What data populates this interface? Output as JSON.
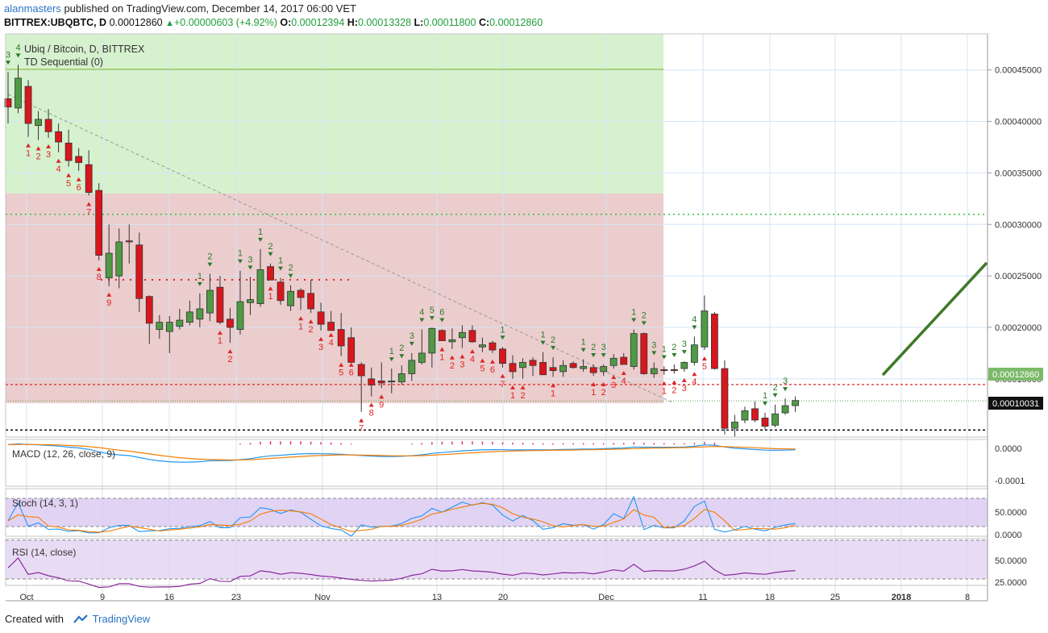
{
  "header": {
    "author": "alanmasters",
    "published_text": "published on TradingView.com, December 14, 2017 06:00 VET",
    "symbol_line": "BITTREX:UBQBTC, D",
    "last": "0.00012860",
    "change": "+0.00000603 (+4.92%)",
    "o_label": "O:",
    "o": "0.00012394",
    "h_label": "H:",
    "h": "0.00013328",
    "l_label": "L:",
    "l": "0.00011800",
    "c_label": "C:",
    "c": "0.00012860"
  },
  "legend": {
    "title": "Ubiq / Bitcoin, D, BITTREX",
    "indicator": "TD Sequential (0)"
  },
  "panes": {
    "macd": {
      "label": "MACD (12, 26, close, 9)",
      "ticks": [
        "0.0000",
        "-0.0001"
      ]
    },
    "stoch": {
      "label": "Stoch (14, 3, 1)",
      "ticks": [
        "50.0000",
        "0.0000"
      ]
    },
    "rsi": {
      "label": "RSI (14, close)",
      "ticks": [
        "50.0000",
        "25.0000"
      ]
    }
  },
  "price_axis": {
    "ticks": [
      "0.00045000",
      "0.00040000",
      "0.00035000",
      "0.00030000",
      "0.00025000",
      "0.00020000",
      "0.00015000"
    ],
    "last_price_tag": "0.00012860",
    "support_tag": "0.00010031"
  },
  "time_axis": [
    "Oct",
    "9",
    "16",
    "23",
    "Nov",
    "13",
    "20",
    "Dec",
    "11",
    "18",
    "25",
    "2018",
    "8"
  ],
  "footer": {
    "created_with": "Created with",
    "brand": "TradingView"
  },
  "colors": {
    "up": "#4f9a44",
    "down": "#d9161c",
    "green_zone": "#cfeec6",
    "red_zone": "#e8c4c4",
    "trend_arrow": "#3e7a28",
    "macd": "#2196f3",
    "signal": "#f57c00",
    "hist": "#e0357f"
  },
  "chart_data": {
    "type": "candlestick",
    "interval": "1D",
    "y_range": [
      9.35e-05,
      0.000485
    ],
    "candles_ohlc": [
      [
        0.000422,
        0.000448,
        0.000398,
        0.000414
      ],
      [
        0.000413,
        0.000455,
        0.000408,
        0.000442
      ],
      [
        0.000434,
        0.00044,
        0.000385,
        0.000398
      ],
      [
        0.000396,
        0.00041,
        0.000382,
        0.000402
      ],
      [
        0.000402,
        0.000412,
        0.000384,
        0.00039
      ],
      [
        0.00039,
        0.000398,
        0.00037,
        0.00038
      ],
      [
        0.000379,
        0.000392,
        0.000356,
        0.000362
      ],
      [
        0.000366,
        0.000374,
        0.000352,
        0.00036
      ],
      [
        0.000358,
        0.000372,
        0.000328,
        0.000331
      ],
      [
        0.000333,
        0.00034,
        0.000265,
        0.00027
      ],
      [
        0.000248,
        0.0003,
        0.00024,
        0.000272
      ],
      [
        0.00025,
        0.000296,
        0.000238,
        0.000283
      ],
      [
        0.000284,
        0.0003,
        0.000262,
        0.000283
      ],
      [
        0.00028,
        0.000292,
        0.000215,
        0.000228
      ],
      [
        0.00023,
        0.000231,
        0.000184,
        0.000204
      ],
      [
        0.000198,
        0.000212,
        0.000189,
        0.000205
      ],
      [
        0.000196,
        0.000211,
        0.000175,
        0.000205
      ],
      [
        0.000201,
        0.000218,
        0.000198,
        0.000207
      ],
      [
        0.000205,
        0.000226,
        0.000202,
        0.000215
      ],
      [
        0.000208,
        0.000233,
        0.0002,
        0.000218
      ],
      [
        0.000214,
        0.000252,
        0.000206,
        0.000236
      ],
      [
        0.000239,
        0.00025,
        0.000203,
        0.000205
      ],
      [
        0.000208,
        0.000219,
        0.000185,
        0.0002
      ],
      [
        0.000198,
        0.000255,
        0.000193,
        0.000225
      ],
      [
        0.000224,
        0.000249,
        0.000212,
        0.000227
      ],
      [
        0.000223,
        0.000276,
        0.00022,
        0.000256
      ],
      [
        0.000259,
        0.000262,
        0.000246,
        0.000246
      ],
      [
        0.000244,
        0.000248,
        0.000222,
        0.000226
      ],
      [
        0.000221,
        0.000241,
        0.000216,
        0.000235
      ],
      [
        0.000236,
        0.000238,
        0.000217,
        0.000229
      ],
      [
        0.000233,
        0.000246,
        0.000214,
        0.000218
      ],
      [
        0.000215,
        0.000224,
        0.000197,
        0.000203
      ],
      [
        0.000205,
        0.000216,
        0.000201,
        0.000197
      ],
      [
        0.000198,
        0.000214,
        0.000172,
        0.000182
      ],
      [
        0.00019,
        0.0002,
        0.000172,
        0.000166
      ],
      [
        0.000164,
        0.000166,
        0.000118,
        0.000153
      ],
      [
        0.00015,
        0.000161,
        0.000133,
        0.000144
      ],
      [
        0.000148,
        0.000166,
        0.000141,
        0.000146
      ],
      [
        0.000147,
        0.00016,
        0.000136,
        0.000148
      ],
      [
        0.000147,
        0.000163,
        0.000144,
        0.000155
      ],
      [
        0.000155,
        0.000175,
        0.000148,
        0.000168
      ],
      [
        0.000166,
        0.000198,
        0.000164,
        0.000175
      ],
      [
        0.000175,
        0.0002,
        0.000161,
        0.000199
      ],
      [
        0.000197,
        0.000198,
        0.000187,
        0.000187
      ],
      [
        0.000186,
        0.000199,
        0.000179,
        0.000188
      ],
      [
        0.00019,
        0.000202,
        0.00018,
        0.000195
      ],
      [
        0.000197,
        0.000202,
        0.000185,
        0.000186
      ],
      [
        0.000181,
        0.00019,
        0.000176,
        0.000183
      ],
      [
        0.000185,
        0.000187,
        0.000175,
        0.000178
      ],
      [
        0.000179,
        0.000181,
        0.000161,
        0.000165
      ],
      [
        0.000165,
        0.000173,
        0.00015,
        0.000157
      ],
      [
        0.000161,
        0.00017,
        0.00015,
        0.000166
      ],
      [
        0.000168,
        0.000171,
        0.000153,
        0.000163
      ],
      [
        0.000166,
        0.000176,
        0.000158,
        0.000154
      ],
      [
        0.000161,
        0.000171,
        0.000152,
        0.000158
      ],
      [
        0.000157,
        0.000168,
        0.000152,
        0.000163
      ],
      [
        0.000165,
        0.000167,
        0.00016,
        0.000161
      ],
      [
        0.00016,
        0.000169,
        0.000157,
        0.000162
      ],
      [
        0.000161,
        0.000164,
        0.000153,
        0.000156
      ],
      [
        0.000157,
        0.000164,
        0.000153,
        0.000162
      ],
      [
        0.000163,
        0.000174,
        0.00016,
        0.00017
      ],
      [
        0.000171,
        0.000175,
        0.000164,
        0.000164
      ],
      [
        0.000162,
        0.000198,
        0.000159,
        0.000194
      ],
      [
        0.000194,
        0.000195,
        0.000154,
        0.000155
      ],
      [
        0.000155,
        0.000166,
        0.000151,
        0.00016
      ],
      [
        0.000159,
        0.000162,
        0.000154,
        0.000158
      ],
      [
        0.000159,
        0.000164,
        0.000155,
        0.000158
      ],
      [
        0.00016,
        0.000167,
        0.000157,
        0.000166
      ],
      [
        0.000166,
        0.000191,
        0.000163,
        0.000183
      ],
      [
        0.000181,
        0.000231,
        0.000178,
        0.000216
      ],
      [
        0.000213,
        0.000215,
        0.000159,
        0.00016
      ],
      [
        0.00016,
        0.000168,
        9.6e-05,
        0.000102
      ],
      [
        0.000102,
        0.000115,
        9.4e-05,
        0.000108
      ],
      [
        0.00011,
        0.000123,
        0.000107,
        0.000119
      ],
      [
        0.000121,
        0.000128,
        0.000108,
        0.00011
      ],
      [
        0.000112,
        0.000117,
        0.000101,
        0.000104
      ],
      [
        0.000105,
        0.000125,
        0.000103,
        0.000116
      ],
      [
        0.000117,
        0.000131,
        0.000115,
        0.000124
      ],
      [
        0.000124,
        0.000133,
        0.000118,
        0.000129
      ]
    ],
    "levels": {
      "green_resistance": 0.0003098,
      "red_resistance": 0.0001445,
      "support": 0.00010031
    },
    "macd": {
      "label": "MACD (12, 26, close, 9)",
      "range": [
        -0.00012,
        8.3e-06
      ]
    },
    "stoch": {
      "label": "Stoch (14, 3, 1)",
      "levels": [
        80,
        20
      ]
    },
    "rsi": {
      "label": "RSI (14, close)",
      "levels": [
        70,
        30
      ]
    }
  }
}
